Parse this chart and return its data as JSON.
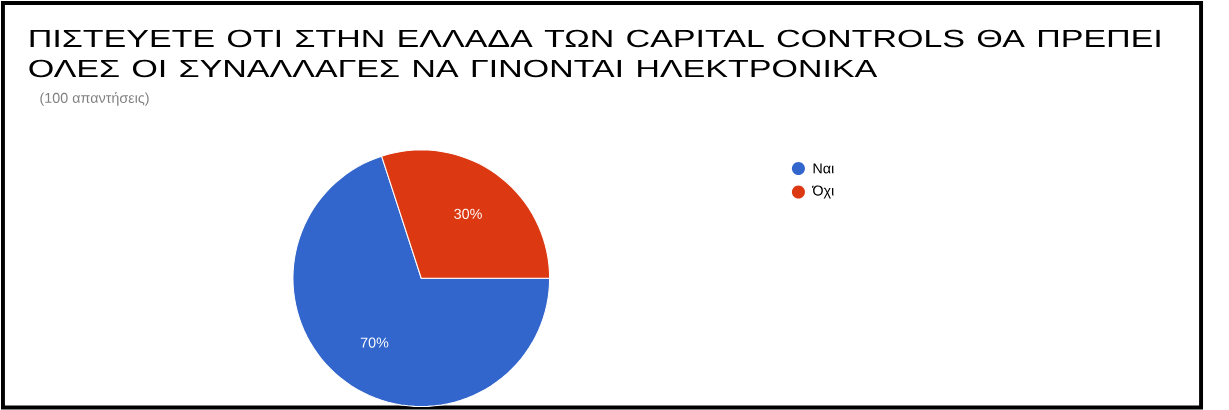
{
  "chart_data": {
    "type": "pie",
    "title": "ΠΙΣΤΕΥΕΤΕ ΟΤΙ ΣΤΗΝ ΕΛΛΑΔΑ ΤΩΝ CAPITAL CONTROLS ΘΑ ΠΡΕΠΕΙ ΟΛΕΣ ΟΙ ΣΥΝΑΛΛΑΓΕΣ ΝΑ ΓΙΝΟΝΤΑΙ ΗΛΕΚΤΡΟΝΙΚΑ",
    "subtitle": "(100 απαντήσεις)",
    "categories": [
      "Ναι",
      "Όχι"
    ],
    "values": [
      70,
      30
    ],
    "colors": [
      "#3366cc",
      "#dc3912"
    ],
    "value_labels": [
      "70%",
      "30%"
    ],
    "legend": "top right"
  }
}
